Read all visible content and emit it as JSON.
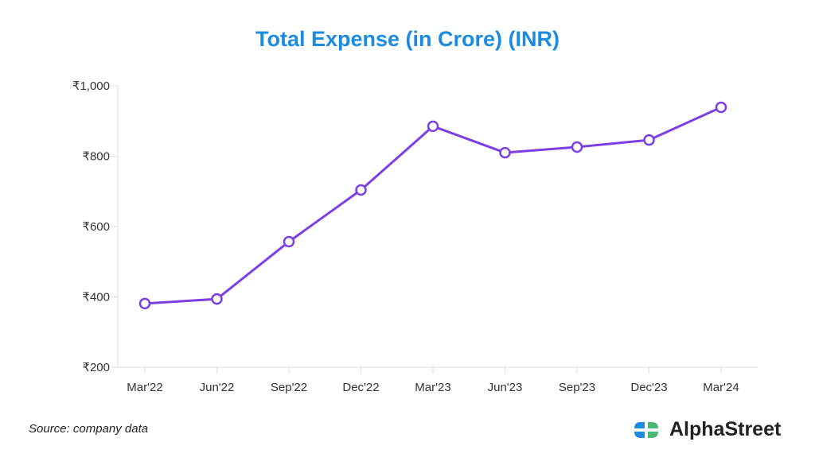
{
  "chart_data": {
    "type": "line",
    "title": "Total Expense (in Crore) (INR)",
    "xlabel": "",
    "ylabel": "",
    "categories": [
      "Mar'22",
      "Jun'22",
      "Sep'22",
      "Dec'22",
      "Mar'23",
      "Jun'23",
      "Sep'23",
      "Dec'23",
      "Mar'24"
    ],
    "series": [
      {
        "name": "Total Expense",
        "values": [
          381,
          394,
          557,
          704,
          885,
          810,
          826,
          846,
          939
        ],
        "color": "#7b3fe4"
      }
    ],
    "ylim": [
      200,
      1000
    ],
    "yticks": [
      200,
      400,
      600,
      800,
      1000
    ],
    "ytick_labels": [
      "₹200",
      "₹400",
      "₹600",
      "₹800",
      "₹1,000"
    ],
    "grid": false
  },
  "footer": {
    "source": "Source: company data",
    "brand": "AlphaStreet"
  },
  "colors": {
    "title": "#1a8be0",
    "line": "#7b3fe4",
    "logo_blue": "#1a8be0",
    "logo_green": "#4cb878"
  }
}
